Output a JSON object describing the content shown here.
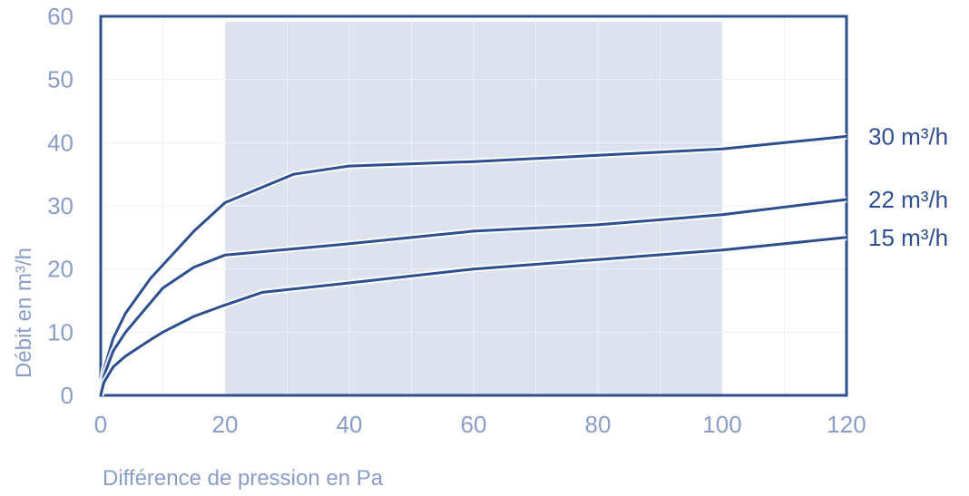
{
  "chart_data": {
    "type": "line",
    "xlabel": "Différence de pression en Pa",
    "ylabel": "Débit en m³/h",
    "xlim": [
      0,
      120
    ],
    "ylim": [
      0,
      60
    ],
    "xticks": [
      0,
      20,
      40,
      60,
      80,
      100,
      120
    ],
    "yticks": [
      0,
      10,
      20,
      30,
      40,
      50,
      60
    ],
    "grid": true,
    "shaded_region": {
      "x": [
        20,
        100
      ]
    },
    "series": [
      {
        "name": "30 m³/h",
        "points": [
          [
            0,
            0
          ],
          [
            0.5,
            4
          ],
          [
            2,
            9
          ],
          [
            4,
            13
          ],
          [
            8,
            18.5
          ],
          [
            15,
            26
          ],
          [
            20,
            30.5
          ],
          [
            31,
            35
          ],
          [
            40,
            36.3
          ],
          [
            60,
            37
          ],
          [
            80,
            38
          ],
          [
            100,
            39
          ],
          [
            120,
            41
          ]
        ]
      },
      {
        "name": "22 m³/h",
        "points": [
          [
            0,
            0
          ],
          [
            0.5,
            3
          ],
          [
            2,
            7
          ],
          [
            4,
            10
          ],
          [
            10,
            17
          ],
          [
            15,
            20.3
          ],
          [
            20,
            22.2
          ],
          [
            40,
            24
          ],
          [
            60,
            26
          ],
          [
            80,
            27
          ],
          [
            100,
            28.6
          ],
          [
            120,
            31
          ]
        ]
      },
      {
        "name": "15 m³/h",
        "points": [
          [
            0,
            0
          ],
          [
            0.5,
            2
          ],
          [
            2,
            4.5
          ],
          [
            4,
            6.2
          ],
          [
            8,
            8.8
          ],
          [
            10,
            10
          ],
          [
            15,
            12.5
          ],
          [
            20,
            14.3
          ],
          [
            26,
            16.3
          ],
          [
            40,
            17.8
          ],
          [
            60,
            20
          ],
          [
            80,
            21.5
          ],
          [
            100,
            23
          ],
          [
            120,
            25
          ]
        ]
      }
    ],
    "colors": {
      "axis": "#2e4f8f",
      "line": "#2e4f8f",
      "label": "#8b9dc7",
      "shade": "#dce3ef",
      "grid": "#eef1f7"
    }
  }
}
